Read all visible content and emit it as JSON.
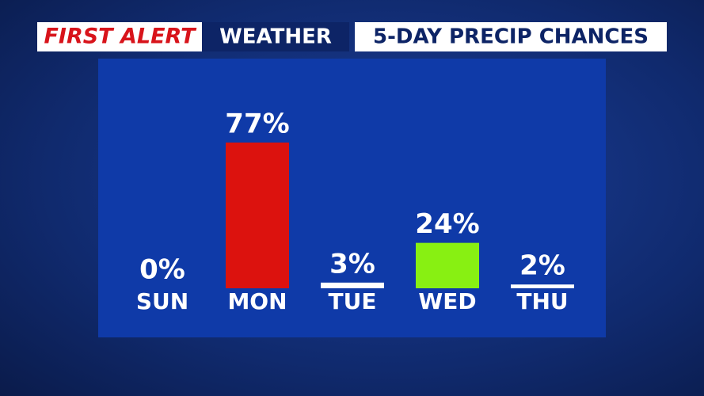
{
  "chart_data": {
    "type": "bar",
    "header": [
      "FIRST ALERT",
      "WEATHER"
    ],
    "title": "5-DAY PRECIP CHANCES",
    "categories": [
      "SUN",
      "MON",
      "TUE",
      "WED",
      "THU"
    ],
    "values": [
      0,
      77,
      3,
      24,
      2
    ],
    "value_labels": [
      "0%",
      "77%",
      "3%",
      "24%",
      "2%"
    ],
    "colors": [
      "#ffffff",
      "#dc120e",
      "#ffffff",
      "#88f012",
      "#ffffff"
    ],
    "ylim": [
      0,
      100
    ]
  }
}
